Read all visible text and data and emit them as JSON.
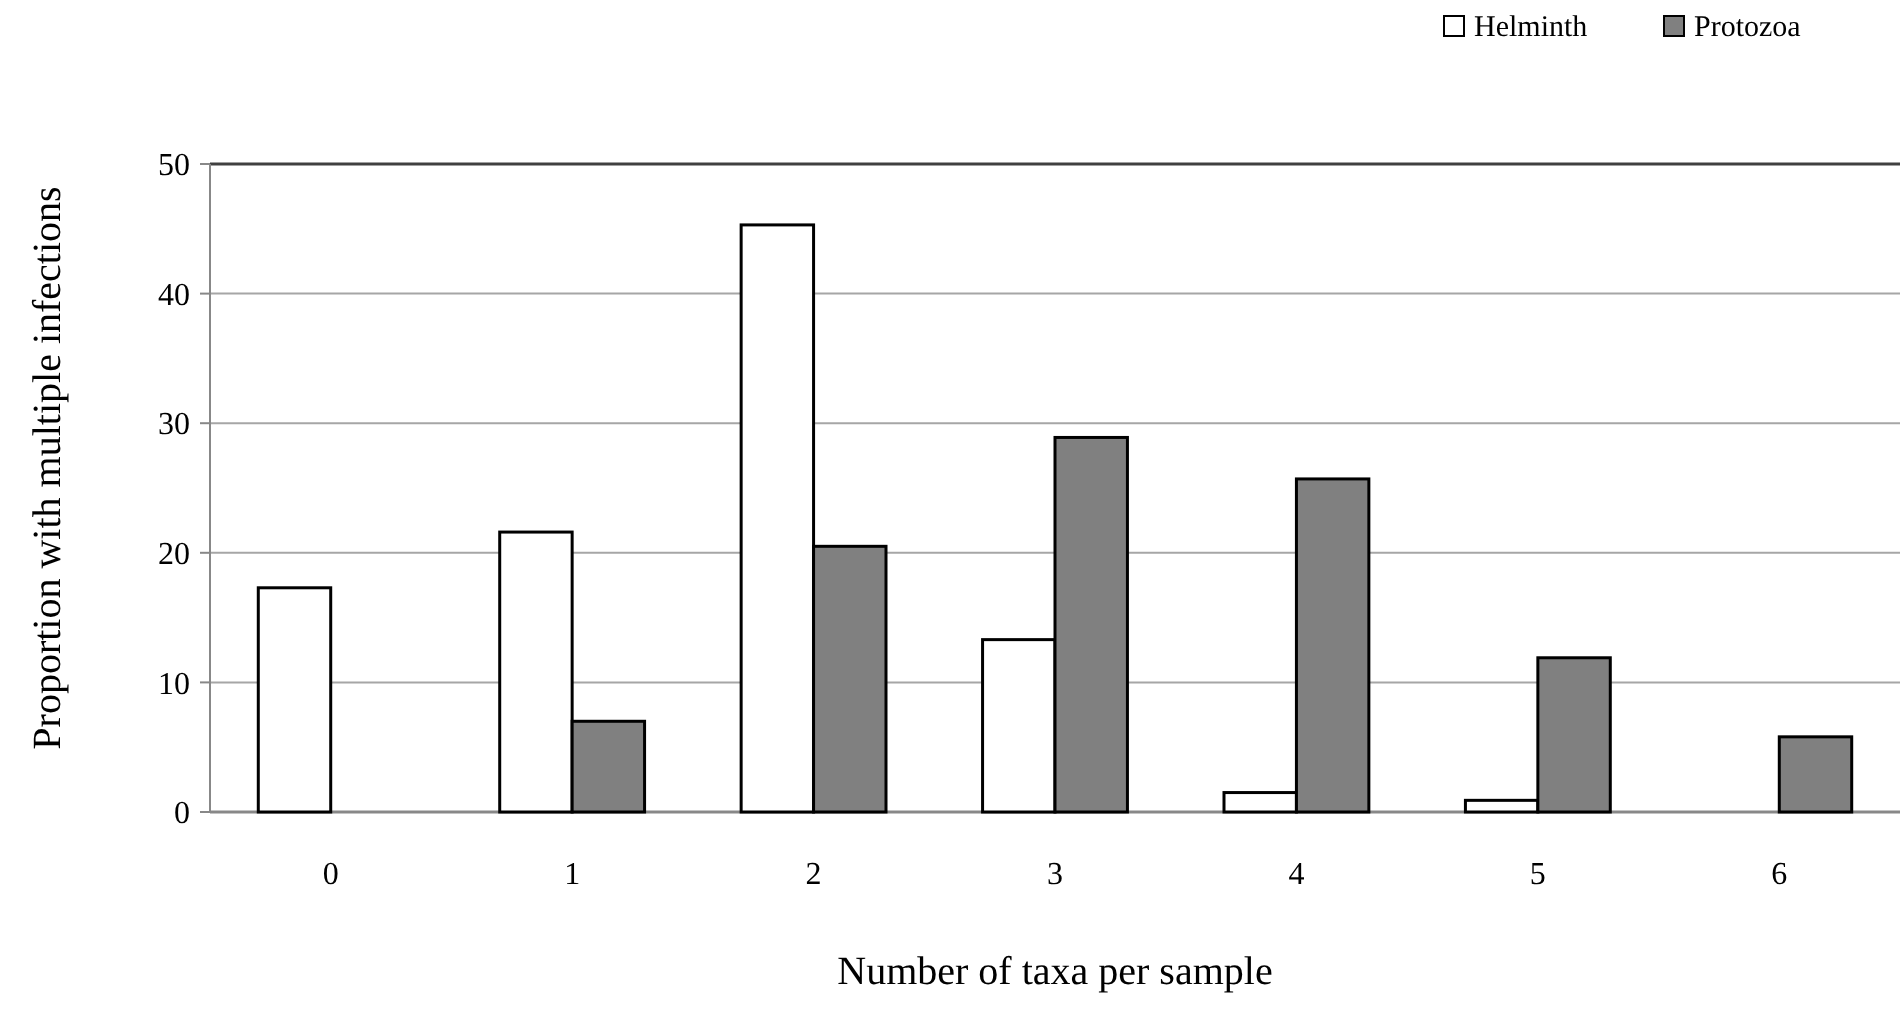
{
  "chart_data": {
    "type": "bar",
    "xlabel": "Number of taxa per sample",
    "ylabel": "Proportion with multiple infections",
    "categories": [
      "0",
      "1",
      "2",
      "3",
      "4",
      "5",
      "6"
    ],
    "series": [
      {
        "name": "Helminth",
        "color": "#ffffff",
        "values": [
          17.3,
          21.6,
          45.3,
          13.3,
          1.5,
          0.9,
          0
        ]
      },
      {
        "name": "Protozoa",
        "color": "#808080",
        "values": [
          0,
          7.0,
          20.5,
          28.9,
          25.7,
          11.9,
          5.8
        ]
      }
    ],
    "ylim": [
      0,
      50
    ],
    "yticks": [
      0,
      10,
      20,
      30,
      40,
      50
    ],
    "grid": "y",
    "legend": "top right"
  }
}
